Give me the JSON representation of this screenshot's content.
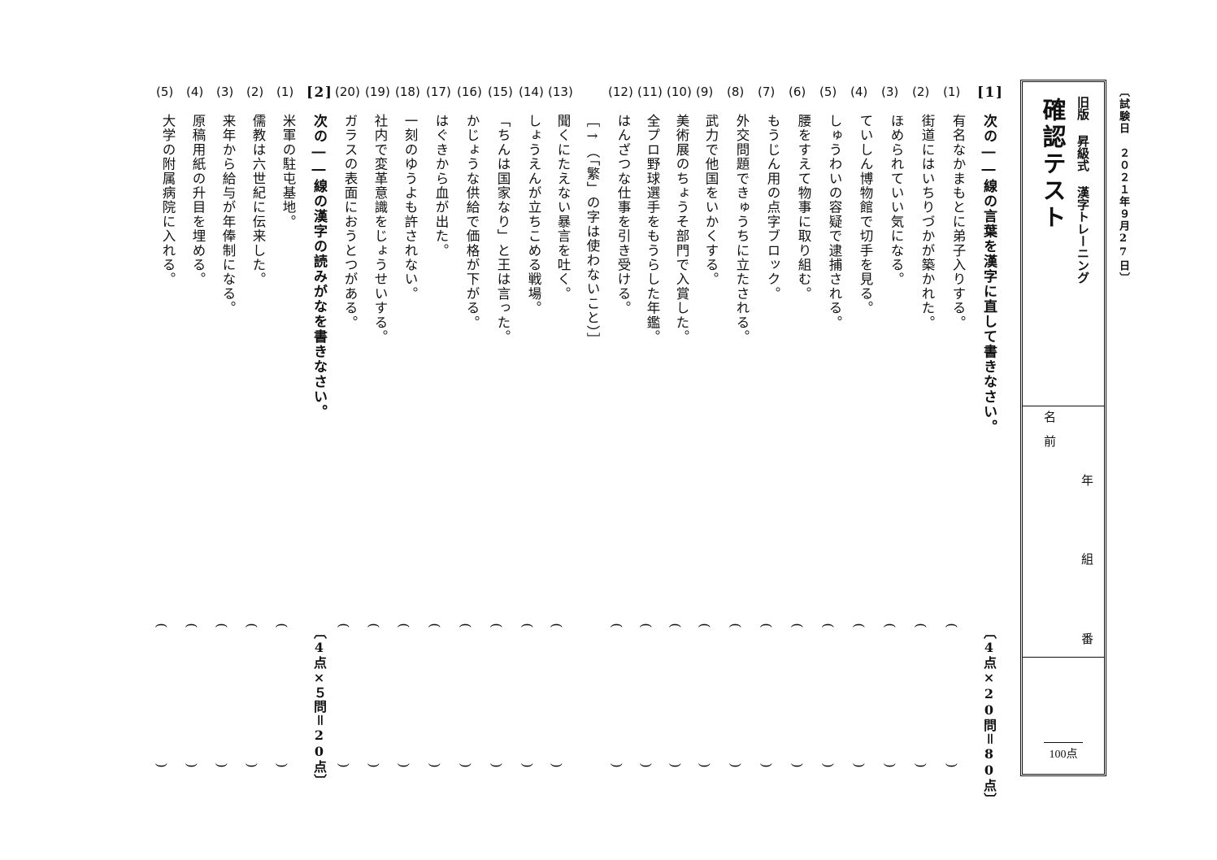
{
  "header": {
    "date": "〔試験日　２０２１年９月27日〕",
    "subtitle": "旧版 昇級式 漢字トレーニング",
    "title": "確認テスト",
    "name_label": "名　前",
    "year_label": "年",
    "class_label": "組",
    "number_label": "番",
    "total_points": "100点"
  },
  "section1": {
    "number": "[1]",
    "instruction": "次の――線の言葉を漢字に直して書きなさい。",
    "score": "〔4点×20問＝80点〕",
    "items": [
      {
        "num": "(1)",
        "text": "有名なかまもとに弟子入りする。"
      },
      {
        "num": "(2)",
        "text": "街道にはいちりづかが築かれた。"
      },
      {
        "num": "(3)",
        "text": "ほめられていい気になる。"
      },
      {
        "num": "(4)",
        "text": "ていしん博物館で切手を見る。"
      },
      {
        "num": "(5)",
        "text": "しゅうわいの容疑で逮捕される。"
      },
      {
        "num": "(6)",
        "text": "腰をすえて物事に取り組む。"
      },
      {
        "num": "(7)",
        "text": "もうじん用の点字ブロック。"
      },
      {
        "num": "(8)",
        "text": "外交問題できゅうちに立たされる。"
      },
      {
        "num": "(9)",
        "text": "武力で他国をいかくする。"
      },
      {
        "num": "(10)",
        "text": "美術展のちょうそ部門で入賞した。"
      },
      {
        "num": "(11)",
        "text": "全プロ野球選手をもうらした年鑑。"
      },
      {
        "num": "(12)",
        "text": "はんざつな仕事を引き受ける。"
      },
      {
        "num": "",
        "text": "［→（「繁」の字は使わないこと）］"
      },
      {
        "num": "(13)",
        "text": "聞くにたえない暴言を吐く。"
      },
      {
        "num": "(14)",
        "text": "しょうえんが立ちこめる戦場。"
      },
      {
        "num": "(15)",
        "text": "「ちんは国家なり」と王は言った。"
      },
      {
        "num": "(16)",
        "text": "かじょうな供給で価格が下がる。"
      },
      {
        "num": "(17)",
        "text": "はぐきから血が出た。"
      },
      {
        "num": "(18)",
        "text": "一刻のゆうよも許されない。"
      },
      {
        "num": "(19)",
        "text": "社内で変革意識をじょうせいする。"
      },
      {
        "num": "(20)",
        "text": "ガラスの表面におうとつがある。"
      }
    ]
  },
  "section2": {
    "number": "[2]",
    "instruction": "次の――線の漢字の読みがなを書きなさい。",
    "score": "〔4点×５問＝20点〕",
    "items": [
      {
        "num": "(1)",
        "text": "米軍の駐屯基地。"
      },
      {
        "num": "(2)",
        "text": "儒教は六世紀に伝来した。"
      },
      {
        "num": "(3)",
        "text": "来年から給与が年俸制になる。"
      },
      {
        "num": "(4)",
        "text": "原稿用紙の升目を埋める。"
      },
      {
        "num": "(5)",
        "text": "大学の附属病院に入れる。"
      }
    ]
  }
}
